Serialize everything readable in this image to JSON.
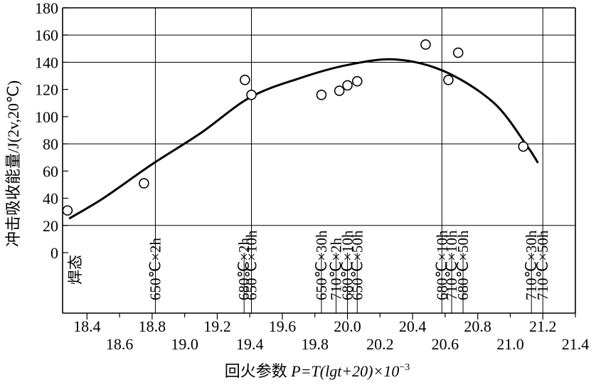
{
  "chart_data": {
    "type": "scatter",
    "xlabel_prefix": "回火参数 ",
    "xlabel_formula": "P=T(lgt+20)×10",
    "xlabel_exponent": "−3",
    "ylabel": "冲击吸收能量/J(2v,20℃)",
    "ylim": [
      0,
      180
    ],
    "yticks": [
      0,
      20,
      40,
      60,
      80,
      100,
      120,
      140,
      160,
      180
    ],
    "y_gridlines": [
      20,
      80,
      140,
      160
    ],
    "xlim": [
      18.25,
      21.4
    ],
    "xticks_upper": [
      18.4,
      18.8,
      19.2,
      19.6,
      20.0,
      20.4,
      20.8,
      21.2
    ],
    "xticks_lower": [
      18.6,
      19.0,
      19.4,
      19.8,
      20.2,
      20.6,
      21.0,
      21.4
    ],
    "points": [
      {
        "x": 18.28,
        "y": 31
      },
      {
        "x": 18.75,
        "y": 51
      },
      {
        "x": 19.37,
        "y": 127
      },
      {
        "x": 19.41,
        "y": 116
      },
      {
        "x": 19.84,
        "y": 116
      },
      {
        "x": 19.95,
        "y": 119
      },
      {
        "x": 20.0,
        "y": 123
      },
      {
        "x": 20.06,
        "y": 126
      },
      {
        "x": 20.48,
        "y": 153
      },
      {
        "x": 20.62,
        "y": 127
      },
      {
        "x": 20.68,
        "y": 147
      },
      {
        "x": 21.08,
        "y": 78
      }
    ],
    "curve": [
      {
        "x": 18.29,
        "y": 25
      },
      {
        "x": 18.5,
        "y": 40
      },
      {
        "x": 18.8,
        "y": 65
      },
      {
        "x": 19.1,
        "y": 88
      },
      {
        "x": 19.4,
        "y": 114
      },
      {
        "x": 19.7,
        "y": 128
      },
      {
        "x": 20.0,
        "y": 138
      },
      {
        "x": 20.3,
        "y": 142
      },
      {
        "x": 20.6,
        "y": 133
      },
      {
        "x": 20.9,
        "y": 110
      },
      {
        "x": 21.1,
        "y": 79
      },
      {
        "x": 21.17,
        "y": 66
      }
    ],
    "condition_lines": [
      {
        "x": 18.82,
        "label": "650℃×2h",
        "grid_top": 180
      },
      {
        "x": 19.365,
        "label": "680℃×2h",
        "grid_top": 0
      },
      {
        "x": 19.41,
        "label": "650℃×10h",
        "grid_top": 180
      },
      {
        "x": 19.84,
        "label": "650℃×30h",
        "grid_top": 0
      },
      {
        "x": 19.93,
        "label": "710℃×2h",
        "grid_top": 0
      },
      {
        "x": 20.0,
        "label": "680℃×10h",
        "grid_top": 0
      },
      {
        "x": 20.06,
        "label": "650℃×50h",
        "grid_top": 0
      },
      {
        "x": 20.58,
        "label": "680℃×10h",
        "grid_top": 180
      },
      {
        "x": 20.64,
        "label": "710℃×10h",
        "grid_top": 0
      },
      {
        "x": 20.71,
        "label": "680℃×50h",
        "grid_top": 0
      },
      {
        "x": 21.13,
        "label": "710℃×30h",
        "grid_top": 0
      },
      {
        "x": 21.2,
        "label": "710℃×50h",
        "grid_top": 180
      }
    ],
    "weld_label": "焊态"
  }
}
